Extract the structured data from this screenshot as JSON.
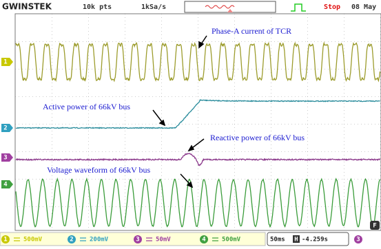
{
  "header": {
    "brand": "GWINSTEK",
    "memory": "10k pts",
    "sample_rate": "1kSa/s",
    "status": "Stop",
    "date": "08 May"
  },
  "channel_markers": [
    "1",
    "2",
    "3",
    "4"
  ],
  "annotations": [
    "Phase-A current of TCR",
    "Active power of 66kV bus",
    "Reactive power of 66kV bus",
    "Voltage waveform of 66kV bus"
  ],
  "status_bar": {
    "channels": [
      {
        "number": "1",
        "scale": "500mV"
      },
      {
        "number": "2",
        "scale": "200mV"
      },
      {
        "number": "3",
        "scale": "50mV"
      },
      {
        "number": "4",
        "scale": "500mV"
      }
    ],
    "timebase": "50ms",
    "horizontal_label": "H",
    "position": "-4.259s",
    "trigger_source": "3"
  },
  "menu_key": "F"
}
